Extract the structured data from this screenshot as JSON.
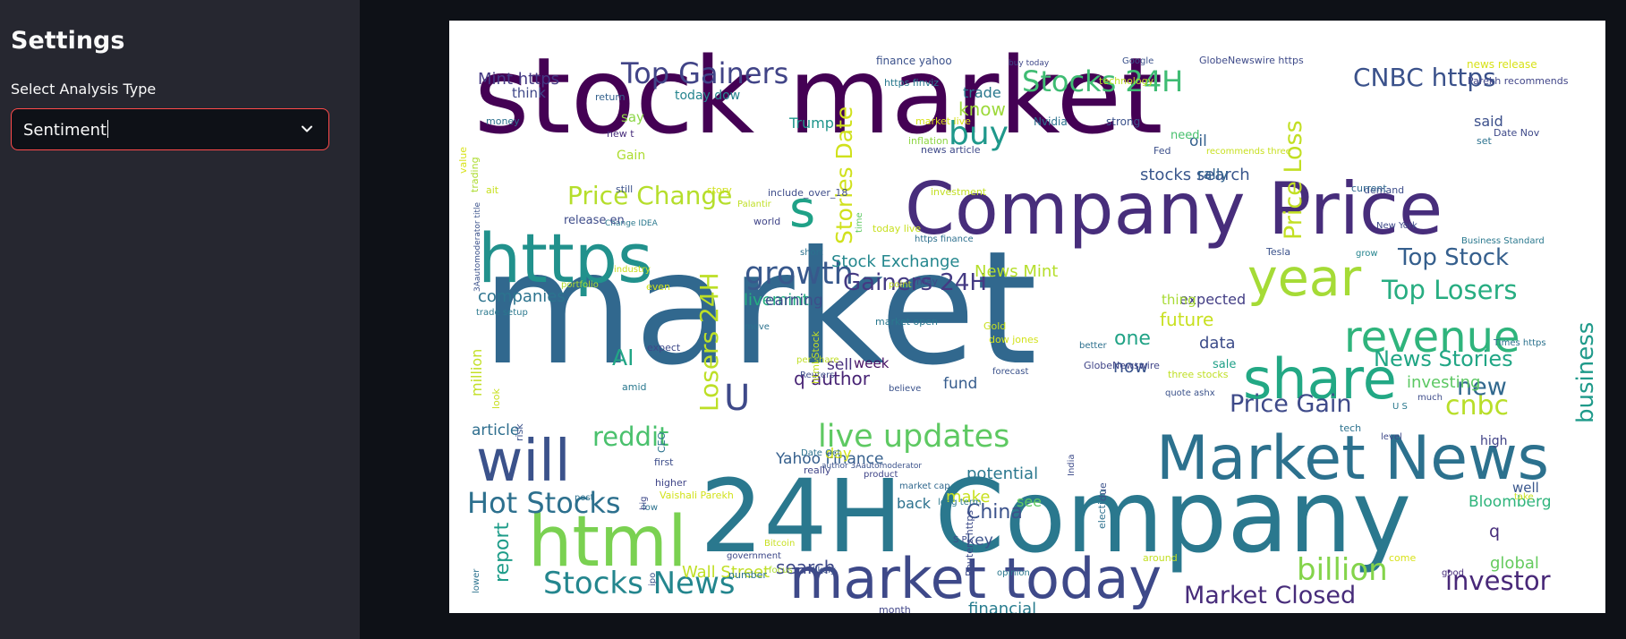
{
  "sidebar": {
    "title": "Settings",
    "select_label": "Select Analysis Type",
    "select_value": "Sentiment",
    "select_icon": "chevron-down-icon"
  },
  "wordcloud": {
    "words": [
      {
        "text": "stock market",
        "color": "#440154"
      },
      {
        "text": "market",
        "color": "#31688e"
      },
      {
        "text": "Company Price",
        "color": "#472d7b"
      },
      {
        "text": "24H Company",
        "color": "#2a788e"
      },
      {
        "text": "Market News",
        "color": "#2c718e"
      },
      {
        "text": "https",
        "color": "#21918c"
      },
      {
        "text": "html",
        "color": "#7ad151"
      },
      {
        "text": "will",
        "color": "#3b528b"
      },
      {
        "text": "share",
        "color": "#22a884"
      },
      {
        "text": "market today",
        "color": "#3e4989"
      },
      {
        "text": "year",
        "color": "#a5db36"
      },
      {
        "text": "revenue",
        "color": "#2fb47c"
      },
      {
        "text": "s",
        "color": "#1fa187"
      },
      {
        "text": "Top Gainers",
        "color": "#414487"
      },
      {
        "text": "Stocks 24H",
        "color": "#3fbc73"
      },
      {
        "text": "CNBC https",
        "color": "#3b528b"
      },
      {
        "text": "Price Change",
        "color": "#b5de2b"
      },
      {
        "text": "growth",
        "color": "#38588c"
      },
      {
        "text": "live updates",
        "color": "#5ec962"
      },
      {
        "text": "Hot Stocks",
        "color": "#2d708e"
      },
      {
        "text": "Stocks News",
        "color": "#24868e"
      },
      {
        "text": "billion",
        "color": "#84d44b"
      },
      {
        "text": "Market Closed",
        "color": "#472c7a"
      },
      {
        "text": "investor",
        "color": "#482878"
      },
      {
        "text": "Price Gain",
        "color": "#3e4a89"
      },
      {
        "text": "cnbc",
        "color": "#b8de29"
      },
      {
        "text": "buy",
        "color": "#1f988b"
      },
      {
        "text": "reddit",
        "color": "#4ac16d"
      },
      {
        "text": "Top Losers",
        "color": "#27ad81"
      },
      {
        "text": "Top Stock",
        "color": "#355f8d"
      },
      {
        "text": "Gainers 24H",
        "color": "#443a83"
      },
      {
        "text": "business",
        "color": "#1f9a8a"
      },
      {
        "text": "U",
        "color": "#3e4989"
      },
      {
        "text": "Losers 24H",
        "color": "#bddf26"
      },
      {
        "text": "Price Loss",
        "color": "#c2df23"
      },
      {
        "text": "Stories Date",
        "color": "#d0e11c"
      },
      {
        "text": "News Stories",
        "color": "#21a685"
      },
      {
        "text": "new",
        "color": "#31688e"
      },
      {
        "text": "Mint https",
        "color": "#443983"
      },
      {
        "text": "know",
        "color": "#9dd93b"
      },
      {
        "text": "companies",
        "color": "#2c738e"
      },
      {
        "text": "stocks search",
        "color": "#39568c"
      },
      {
        "text": "Stock Exchange",
        "color": "#24878e"
      },
      {
        "text": "News Mint",
        "color": "#b5de2b"
      },
      {
        "text": "livemint",
        "color": "#26ad81"
      },
      {
        "text": "AI",
        "color": "#21a585"
      },
      {
        "text": "q author",
        "color": "#482475"
      },
      {
        "text": "sell",
        "color": "#472f7d"
      },
      {
        "text": "earning",
        "color": "#3d4e8a"
      },
      {
        "text": "future",
        "color": "#c8e020"
      },
      {
        "text": "one",
        "color": "#21a386"
      },
      {
        "text": "data",
        "color": "#3d4d8a"
      },
      {
        "text": "now",
        "color": "#3a548c"
      },
      {
        "text": "investing",
        "color": "#5cc863"
      },
      {
        "text": "expected",
        "color": "#433e85"
      },
      {
        "text": "million",
        "color": "#c2df23"
      },
      {
        "text": "report",
        "color": "#1e9c89"
      },
      {
        "text": "Yahoo Finance",
        "color": "#355f8d"
      },
      {
        "text": "potential",
        "color": "#2a778e"
      },
      {
        "text": "China",
        "color": "#3b528b"
      },
      {
        "text": "financial",
        "color": "#287c8e"
      },
      {
        "text": "Wall Street",
        "color": "#c0df25"
      },
      {
        "text": "search",
        "color": "#3e4989"
      },
      {
        "text": "q",
        "color": "#472d7b"
      },
      {
        "text": "global",
        "color": "#65cb5e"
      },
      {
        "text": "Bloomberg",
        "color": "#2fb47c"
      },
      {
        "text": "article",
        "color": "#2e6e8e"
      },
      {
        "text": "think",
        "color": "#3f4889"
      },
      {
        "text": "trade",
        "color": "#2a788e"
      },
      {
        "text": "Trump",
        "color": "#1f958b"
      },
      {
        "text": "say",
        "color": "#8bd646"
      },
      {
        "text": "Gain",
        "color": "#addc30"
      },
      {
        "text": "oil",
        "color": "#34608d"
      },
      {
        "text": "said",
        "color": "#3c508b"
      },
      {
        "text": "rally",
        "color": "#33638d"
      },
      {
        "text": "need",
        "color": "#48c16e"
      },
      {
        "text": "fund",
        "color": "#365c8d"
      },
      {
        "text": "week",
        "color": "#471164"
      },
      {
        "text": "day",
        "color": "#d2e21b"
      },
      {
        "text": "make",
        "color": "#c8e020"
      },
      {
        "text": "key",
        "color": "#3b528b"
      },
      {
        "text": "back",
        "color": "#2c718e"
      },
      {
        "text": "see",
        "color": "#5ec962"
      },
      {
        "text": "well",
        "color": "#39568c"
      },
      {
        "text": "high",
        "color": "#404387"
      },
      {
        "text": "thing",
        "color": "#a8db34"
      },
      {
        "text": "sale",
        "color": "#1fa088"
      },
      {
        "text": "finance yahoo",
        "color": "#3b518b"
      },
      {
        "text": "https finviz",
        "color": "#29798e"
      },
      {
        "text": "today dow",
        "color": "#25848e"
      },
      {
        "text": "Google",
        "color": "#3b528b"
      },
      {
        "text": "GlobeNewswire https",
        "color": "#3e4a89"
      },
      {
        "text": "news release",
        "color": "#d8e219"
      },
      {
        "text": "Parekh recommends",
        "color": "#404588"
      },
      {
        "text": "buy today",
        "color": "#3f4889"
      },
      {
        "text": "technology",
        "color": "#c0df25"
      },
      {
        "text": "Nvidia",
        "color": "#2c728e"
      },
      {
        "text": "market live",
        "color": "#d8e219"
      },
      {
        "text": "strong",
        "color": "#3b528b"
      },
      {
        "text": "Fed",
        "color": "#3c4f8a"
      },
      {
        "text": "money",
        "color": "#2d718e"
      },
      {
        "text": "new t",
        "color": "#472d7b"
      },
      {
        "text": "return",
        "color": "#34618d"
      },
      {
        "text": "set",
        "color": "#2c728e"
      },
      {
        "text": "Date Nov",
        "color": "#3e4989"
      },
      {
        "text": "trading",
        "color": "#addc30"
      },
      {
        "text": "ait",
        "color": "#c8e020"
      },
      {
        "text": "still",
        "color": "#3b528b"
      },
      {
        "text": "story",
        "color": "#d0e11c"
      },
      {
        "text": "include_over_18",
        "color": "#3e4c8a"
      },
      {
        "text": "inflation",
        "color": "#8fd744"
      },
      {
        "text": "news article",
        "color": "#3e4989"
      },
      {
        "text": "investment",
        "color": "#c2df23"
      },
      {
        "text": "demand",
        "color": "#3d4d8a"
      },
      {
        "text": "current",
        "color": "#31688e"
      },
      {
        "text": "Palantir",
        "color": "#c0df25"
      },
      {
        "text": "world",
        "color": "#404588"
      },
      {
        "text": "Change IDEA",
        "color": "#2a788e"
      },
      {
        "text": "today live",
        "color": "#c8e020"
      },
      {
        "text": "https finance",
        "color": "#2d708e"
      },
      {
        "text": "time",
        "color": "#5ec962"
      },
      {
        "text": "New York",
        "color": "#3e4989"
      },
      {
        "text": "Business Standard",
        "color": "#2a788e"
      },
      {
        "text": "Tesla",
        "color": "#3b528b"
      },
      {
        "text": "grow",
        "color": "#25848e"
      },
      {
        "text": "short",
        "color": "#2c728e"
      },
      {
        "text": "point",
        "color": "#c2df23"
      },
      {
        "text": "may",
        "color": "#3e4c8a"
      },
      {
        "text": "even",
        "color": "#d2e21b"
      },
      {
        "text": "industry",
        "color": "#c8e020"
      },
      {
        "text": "portfolio",
        "color": "#addc30"
      },
      {
        "text": "trade setup",
        "color": "#2a788e"
      },
      {
        "text": "3Aautomoderator title",
        "color": "#3b528b"
      },
      {
        "text": "release en",
        "color": "#3e4c8a"
      },
      {
        "text": "first",
        "color": "#3d4d8a"
      },
      {
        "text": "higher",
        "color": "#404588"
      },
      {
        "text": "Vaishali Parekh",
        "color": "#d2e21b"
      },
      {
        "text": "low",
        "color": "#2c728e"
      },
      {
        "text": "post",
        "color": "#2d708e"
      },
      {
        "text": "big",
        "color": "#3e4989"
      },
      {
        "text": "author 3Aautomoderator",
        "color": "#3b528b"
      },
      {
        "text": "Date Oct",
        "color": "#2c728e"
      },
      {
        "text": "product",
        "color": "#404588"
      },
      {
        "text": "long term",
        "color": "#2a788e"
      },
      {
        "text": "market cap",
        "color": "#31688e"
      },
      {
        "text": "S P",
        "color": "#3e4c8a"
      },
      {
        "text": "Bitcoin",
        "color": "#c8e020"
      },
      {
        "text": "number",
        "color": "#2c728e"
      },
      {
        "text": "government",
        "color": "#3e4989"
      },
      {
        "text": "focus",
        "color": "#addc30"
      },
      {
        "text": "likely",
        "color": "#3b528b"
      },
      {
        "text": "month",
        "color": "#404588"
      },
      {
        "text": "opinion",
        "color": "#2a788e"
      },
      {
        "text": "Reuters https",
        "color": "#3e4c8a"
      },
      {
        "text": "lower",
        "color": "#2c728e"
      },
      {
        "text": "ipo",
        "color": "#3b528b"
      },
      {
        "text": "around",
        "color": "#c2df23"
      },
      {
        "text": "come",
        "color": "#d8e219"
      },
      {
        "text": "good",
        "color": "#472d7b"
      },
      {
        "text": "level",
        "color": "#3e4989"
      },
      {
        "text": "tech",
        "color": "#2c728e"
      },
      {
        "text": "U S",
        "color": "#2a788e"
      },
      {
        "text": "take",
        "color": "#c8e020"
      },
      {
        "text": "much",
        "color": "#3e4c8a"
      },
      {
        "text": "three stocks",
        "color": "#c0df25"
      },
      {
        "text": "quote ashx",
        "color": "#3b528b"
      },
      {
        "text": "GlobeNewswire",
        "color": "#404588"
      },
      {
        "text": "better",
        "color": "#2d708e"
      },
      {
        "text": "forecast",
        "color": "#3b528b"
      },
      {
        "text": "Times https",
        "color": "#2c728e"
      },
      {
        "text": "dow jones",
        "color": "#d2e21b"
      },
      {
        "text": "Gold",
        "color": "#c8e020"
      },
      {
        "text": "market open",
        "color": "#2a788e"
      },
      {
        "text": "per share",
        "color": "#c0df25"
      },
      {
        "text": "Reuters",
        "color": "#3e4c8a"
      },
      {
        "text": "believe",
        "color": "#3b528b"
      },
      {
        "text": "really",
        "color": "#404588"
      },
      {
        "text": "move",
        "color": "#2c728e"
      },
      {
        "text": "expect",
        "color": "#3e4989"
      },
      {
        "text": "amid",
        "color": "#2a788e"
      },
      {
        "text": "look",
        "color": "#c8e020"
      },
      {
        "text": "risk",
        "color": "#3b528b"
      },
      {
        "text": "CEO",
        "color": "#2c728e"
      },
      {
        "text": "India",
        "color": "#3e4c8a"
      },
      {
        "text": "election",
        "color": "#2d708e"
      },
      {
        "text": "due",
        "color": "#3b528b"
      },
      {
        "text": "html Stock",
        "color": "#c2df23"
      },
      {
        "text": "value",
        "color": "#d8e219"
      },
      {
        "text": "recommends three",
        "color": "#c8e020"
      },
      {
        "text": "sell Vaishali",
        "color": "#3e4989"
      },
      {
        "text": "global market",
        "color": "#c0df25"
      },
      {
        "text": "end",
        "color": "#3b528b"
      },
      {
        "text": "daily discussion",
        "color": "#2a788e"
      },
      {
        "text": "Bloomberg https",
        "color": "#3e4c8a"
      },
      {
        "text": "Finance https",
        "color": "#2c728e"
      },
      {
        "text": "rise",
        "color": "#d2e21b"
      },
      {
        "text": "ashx t",
        "color": "#3e4989"
      },
      {
        "text": "p d",
        "color": "#3b528b"
      }
    ]
  }
}
